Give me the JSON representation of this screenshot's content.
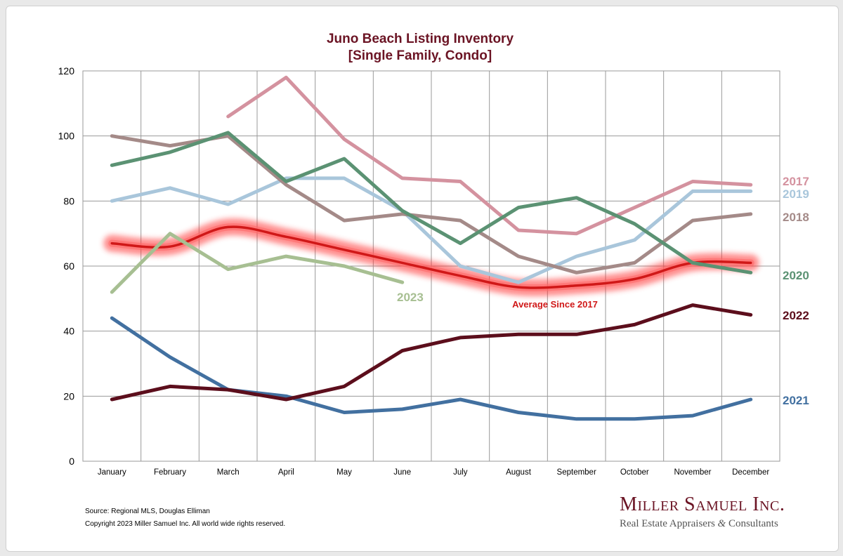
{
  "chart_data": {
    "type": "line",
    "title": "Juno Beach Listing Inventory",
    "subtitle": "[Single Family, Condo]",
    "categories": [
      "January",
      "February",
      "March",
      "April",
      "May",
      "June",
      "July",
      "August",
      "September",
      "October",
      "November",
      "December"
    ],
    "ylim": [
      0,
      120
    ],
    "yticks": [
      0,
      20,
      40,
      60,
      80,
      100,
      120
    ],
    "grid": true,
    "series": [
      {
        "name": "2017",
        "color": "#d4929f",
        "values": [
          null,
          null,
          106,
          118,
          99,
          87,
          86,
          71,
          70,
          78,
          86,
          85
        ]
      },
      {
        "name": "2018",
        "color": "#a48a88",
        "values": [
          100,
          97,
          100,
          85,
          74,
          76,
          74,
          63,
          58,
          61,
          74,
          76
        ]
      },
      {
        "name": "2019",
        "color": "#a9c6db",
        "values": [
          80,
          84,
          79,
          87,
          87,
          77,
          60,
          55,
          63,
          68,
          83,
          83
        ]
      },
      {
        "name": "2020",
        "color": "#5b9273",
        "values": [
          91,
          95,
          101,
          86,
          93,
          77,
          67,
          78,
          81,
          73,
          61,
          58
        ]
      },
      {
        "name": "2021",
        "color": "#4270a0",
        "values": [
          44,
          32,
          22,
          20,
          15,
          16,
          19,
          15,
          13,
          13,
          14,
          19
        ]
      },
      {
        "name": "2022",
        "color": "#5c0e1c",
        "values": [
          19,
          23,
          22,
          19,
          23,
          34,
          38,
          39,
          39,
          42,
          48,
          45
        ]
      },
      {
        "name": "2023",
        "color": "#a7bf92",
        "values": [
          52,
          70,
          59,
          63,
          60,
          55,
          null,
          null,
          null,
          null,
          null,
          null
        ]
      },
      {
        "name": "Average  Since 2017",
        "color": "#d01818",
        "values": [
          67,
          66,
          72,
          69,
          65,
          61,
          57,
          53.5,
          54,
          56,
          61,
          61
        ]
      }
    ]
  },
  "footer": {
    "source": "Source: Regional MLS, Douglas Elliman",
    "copyright": "Copyright 2023 Miller Samuel Inc.  All world wide rights reserved."
  },
  "brand": {
    "name": "Miller Samuel Inc.",
    "tagline_part1": "Real Estate Appraisers ",
    "tagline_amp": "&",
    "tagline_part2": " Consultants",
    "color": "#6b1424"
  }
}
